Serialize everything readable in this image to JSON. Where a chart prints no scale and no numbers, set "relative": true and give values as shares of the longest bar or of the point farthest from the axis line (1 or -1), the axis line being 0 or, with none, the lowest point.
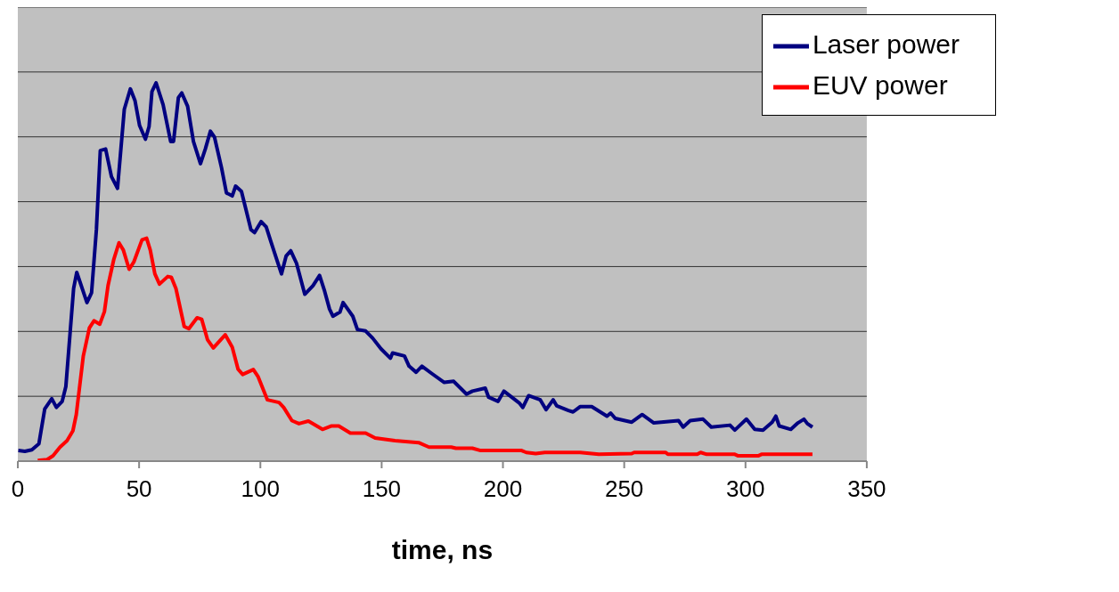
{
  "chart_data": {
    "type": "line",
    "relative": true,
    "xlabel": "time, ns",
    "xlim": [
      0,
      350
    ],
    "xticks": [
      0,
      50,
      100,
      150,
      200,
      250,
      300,
      350
    ],
    "grid": "y",
    "legend": "top right",
    "line_style": "solid",
    "marker": "none",
    "series": [
      {
        "name": "Laser power",
        "color": "#000080",
        "x": [
          0.2,
          2.9,
          5.8,
          8.7,
          11.1,
          14.0,
          15.9,
          18.3,
          19.8,
          23.0,
          24.3,
          28.5,
          30.4,
          32.4,
          34.0,
          36.2,
          38.6,
          41.1,
          43.9,
          46.4,
          48.3,
          50.2,
          52.6,
          54.1,
          55.3,
          57.0,
          59.9,
          63.0,
          64.2,
          66.2,
          67.6,
          70.0,
          72.4,
          75.3,
          77.3,
          79.4,
          81.1,
          84.0,
          86.0,
          88.4,
          89.8,
          92.2,
          93.7,
          96.1,
          97.6,
          100.3,
          102.4,
          104.3,
          106.7,
          108.7,
          110.6,
          112.5,
          114.9,
          118.3,
          121.7,
          124.4,
          126.5,
          128.5,
          129.9,
          132.8,
          134.1,
          138.1,
          140.0,
          143.4,
          146.3,
          149.7,
          153.6,
          154.5,
          159.4,
          161.3,
          164.2,
          166.6,
          171.0,
          175.8,
          179.7,
          185.0,
          187.4,
          192.7,
          194.1,
          198.0,
          200.4,
          206.7,
          208.2,
          210.6,
          215.4,
          217.8,
          220.7,
          222.2,
          227.0,
          228.9,
          231.8,
          236.6,
          242.9,
          244.4,
          246.3,
          253.1,
          257.4,
          262.2,
          272.4,
          274.3,
          277.2,
          282.5,
          285.9,
          293.6,
          295.6,
          300.4,
          303.8,
          307.2,
          311.0,
          312.5,
          313.9,
          318.7,
          321.6,
          324.1,
          325.5,
          327.6
        ],
        "values": [
          0.028,
          0.026,
          0.03,
          0.046,
          0.138,
          0.165,
          0.142,
          0.158,
          0.197,
          0.456,
          0.499,
          0.419,
          0.445,
          0.612,
          0.821,
          0.825,
          0.752,
          0.721,
          0.93,
          0.984,
          0.953,
          0.887,
          0.851,
          0.884,
          0.977,
          1.0,
          0.942,
          0.845,
          0.845,
          0.961,
          0.973,
          0.938,
          0.845,
          0.786,
          0.825,
          0.872,
          0.856,
          0.775,
          0.709,
          0.701,
          0.727,
          0.713,
          0.674,
          0.612,
          0.604,
          0.633,
          0.619,
          0.581,
          0.534,
          0.495,
          0.542,
          0.556,
          0.523,
          0.441,
          0.464,
          0.491,
          0.449,
          0.402,
          0.383,
          0.394,
          0.419,
          0.383,
          0.348,
          0.344,
          0.325,
          0.297,
          0.272,
          0.286,
          0.278,
          0.251,
          0.235,
          0.251,
          0.23,
          0.208,
          0.211,
          0.177,
          0.185,
          0.193,
          0.169,
          0.158,
          0.185,
          0.154,
          0.142,
          0.173,
          0.162,
          0.136,
          0.162,
          0.146,
          0.134,
          0.13,
          0.144,
          0.144,
          0.119,
          0.127,
          0.113,
          0.103,
          0.123,
          0.101,
          0.107,
          0.09,
          0.107,
          0.111,
          0.09,
          0.095,
          0.082,
          0.111,
          0.084,
          0.082,
          0.103,
          0.119,
          0.093,
          0.084,
          0.101,
          0.111,
          0.099,
          0.09
        ]
      },
      {
        "name": "EUV power",
        "color": "#ff0000",
        "x": [
          8.2,
          12.1,
          14.5,
          17.4,
          20.3,
          22.7,
          24.1,
          27.0,
          29.5,
          31.4,
          33.8,
          35.7,
          37.2,
          39.6,
          41.7,
          43.5,
          45.9,
          47.8,
          51.2,
          53.1,
          54.6,
          56.5,
          58.4,
          61.8,
          63.3,
          65.2,
          68.6,
          70.5,
          73.9,
          75.8,
          78.2,
          80.6,
          85.5,
          88.4,
          90.8,
          92.7,
          97.1,
          99.0,
          102.9,
          107.7,
          109.6,
          113.0,
          115.9,
          119.8,
          125.6,
          129.4,
          132.3,
          137.1,
          143.4,
          147.3,
          155.5,
          165.2,
          169.5,
          178.7,
          180.6,
          187.4,
          190.8,
          207.7,
          209.6,
          213.5,
          217.3,
          231.8,
          239.5,
          253.1,
          254.1,
          267.1,
          268.0,
          280.1,
          281.5,
          284.0,
          295.6,
          297.0,
          305.2,
          306.6,
          327.6
        ],
        "values": [
          0.002,
          0.004,
          0.014,
          0.037,
          0.054,
          0.08,
          0.123,
          0.278,
          0.352,
          0.371,
          0.362,
          0.395,
          0.464,
          0.534,
          0.577,
          0.558,
          0.507,
          0.526,
          0.585,
          0.589,
          0.558,
          0.495,
          0.468,
          0.488,
          0.486,
          0.456,
          0.356,
          0.35,
          0.379,
          0.375,
          0.321,
          0.299,
          0.334,
          0.301,
          0.243,
          0.229,
          0.242,
          0.224,
          0.162,
          0.155,
          0.142,
          0.107,
          0.099,
          0.106,
          0.084,
          0.093,
          0.093,
          0.074,
          0.074,
          0.061,
          0.054,
          0.049,
          0.037,
          0.037,
          0.034,
          0.034,
          0.028,
          0.028,
          0.023,
          0.02,
          0.023,
          0.023,
          0.018,
          0.02,
          0.023,
          0.023,
          0.018,
          0.018,
          0.023,
          0.018,
          0.018,
          0.014,
          0.014,
          0.018,
          0.018
        ]
      }
    ]
  }
}
